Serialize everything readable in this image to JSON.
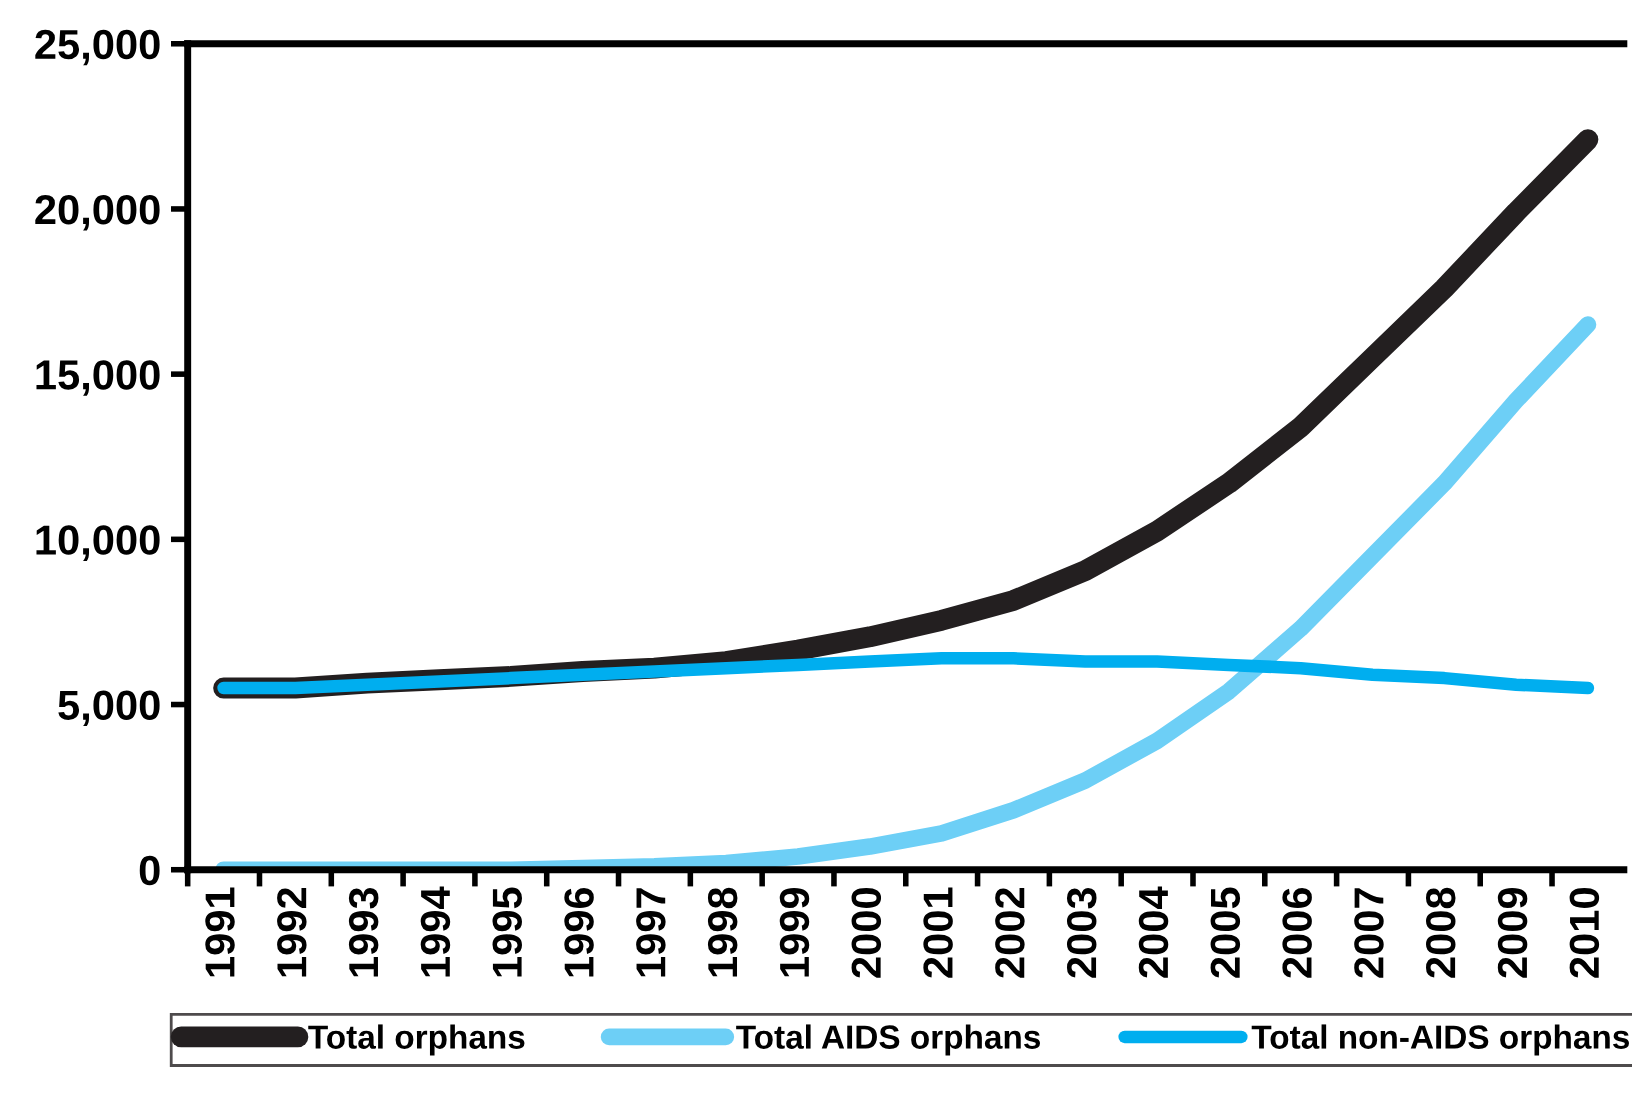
{
  "chart_data": {
    "type": "line",
    "categories": [
      "1991",
      "1992",
      "1993",
      "1994",
      "1995",
      "1996",
      "1997",
      "1998",
      "1999",
      "2000",
      "2001",
      "2002",
      "2003",
      "2004",
      "2005",
      "2006",
      "2007",
      "2008",
      "2009",
      "2010"
    ],
    "series": [
      {
        "name": "Total orphans",
        "color": "#231f20",
        "values": [
          5500,
          5500,
          5650,
          5750,
          5850,
          6000,
          6100,
          6300,
          6650,
          7050,
          7550,
          8150,
          9050,
          10250,
          11700,
          13400,
          15500,
          17600,
          19900,
          22100
        ]
      },
      {
        "name": "Total AIDS orphans",
        "color": "#6dcff6",
        "values": [
          0,
          0,
          0,
          0,
          0,
          50,
          100,
          200,
          400,
          700,
          1100,
          1800,
          2700,
          3900,
          5400,
          7300,
          9500,
          11700,
          14200,
          16500
        ]
      },
      {
        "name": "Total non-AIDS orphans",
        "color": "#00aeef",
        "values": [
          5500,
          5500,
          5600,
          5700,
          5800,
          5900,
          6000,
          6100,
          6200,
          6300,
          6400,
          6400,
          6300,
          6300,
          6200,
          6100,
          5900,
          5800,
          5600,
          5500
        ]
      }
    ],
    "ylim": [
      0,
      25000
    ],
    "yticks": [
      {
        "value": 0,
        "label": "0"
      },
      {
        "value": 5000,
        "label": "5,000"
      },
      {
        "value": 10000,
        "label": "10,000"
      },
      {
        "value": 15000,
        "label": "15,000"
      },
      {
        "value": 20000,
        "label": "20,000"
      },
      {
        "value": 25000,
        "label": "25,000"
      }
    ],
    "grid": false,
    "legend": "bottom",
    "marker": "none",
    "line_style": "solid"
  }
}
